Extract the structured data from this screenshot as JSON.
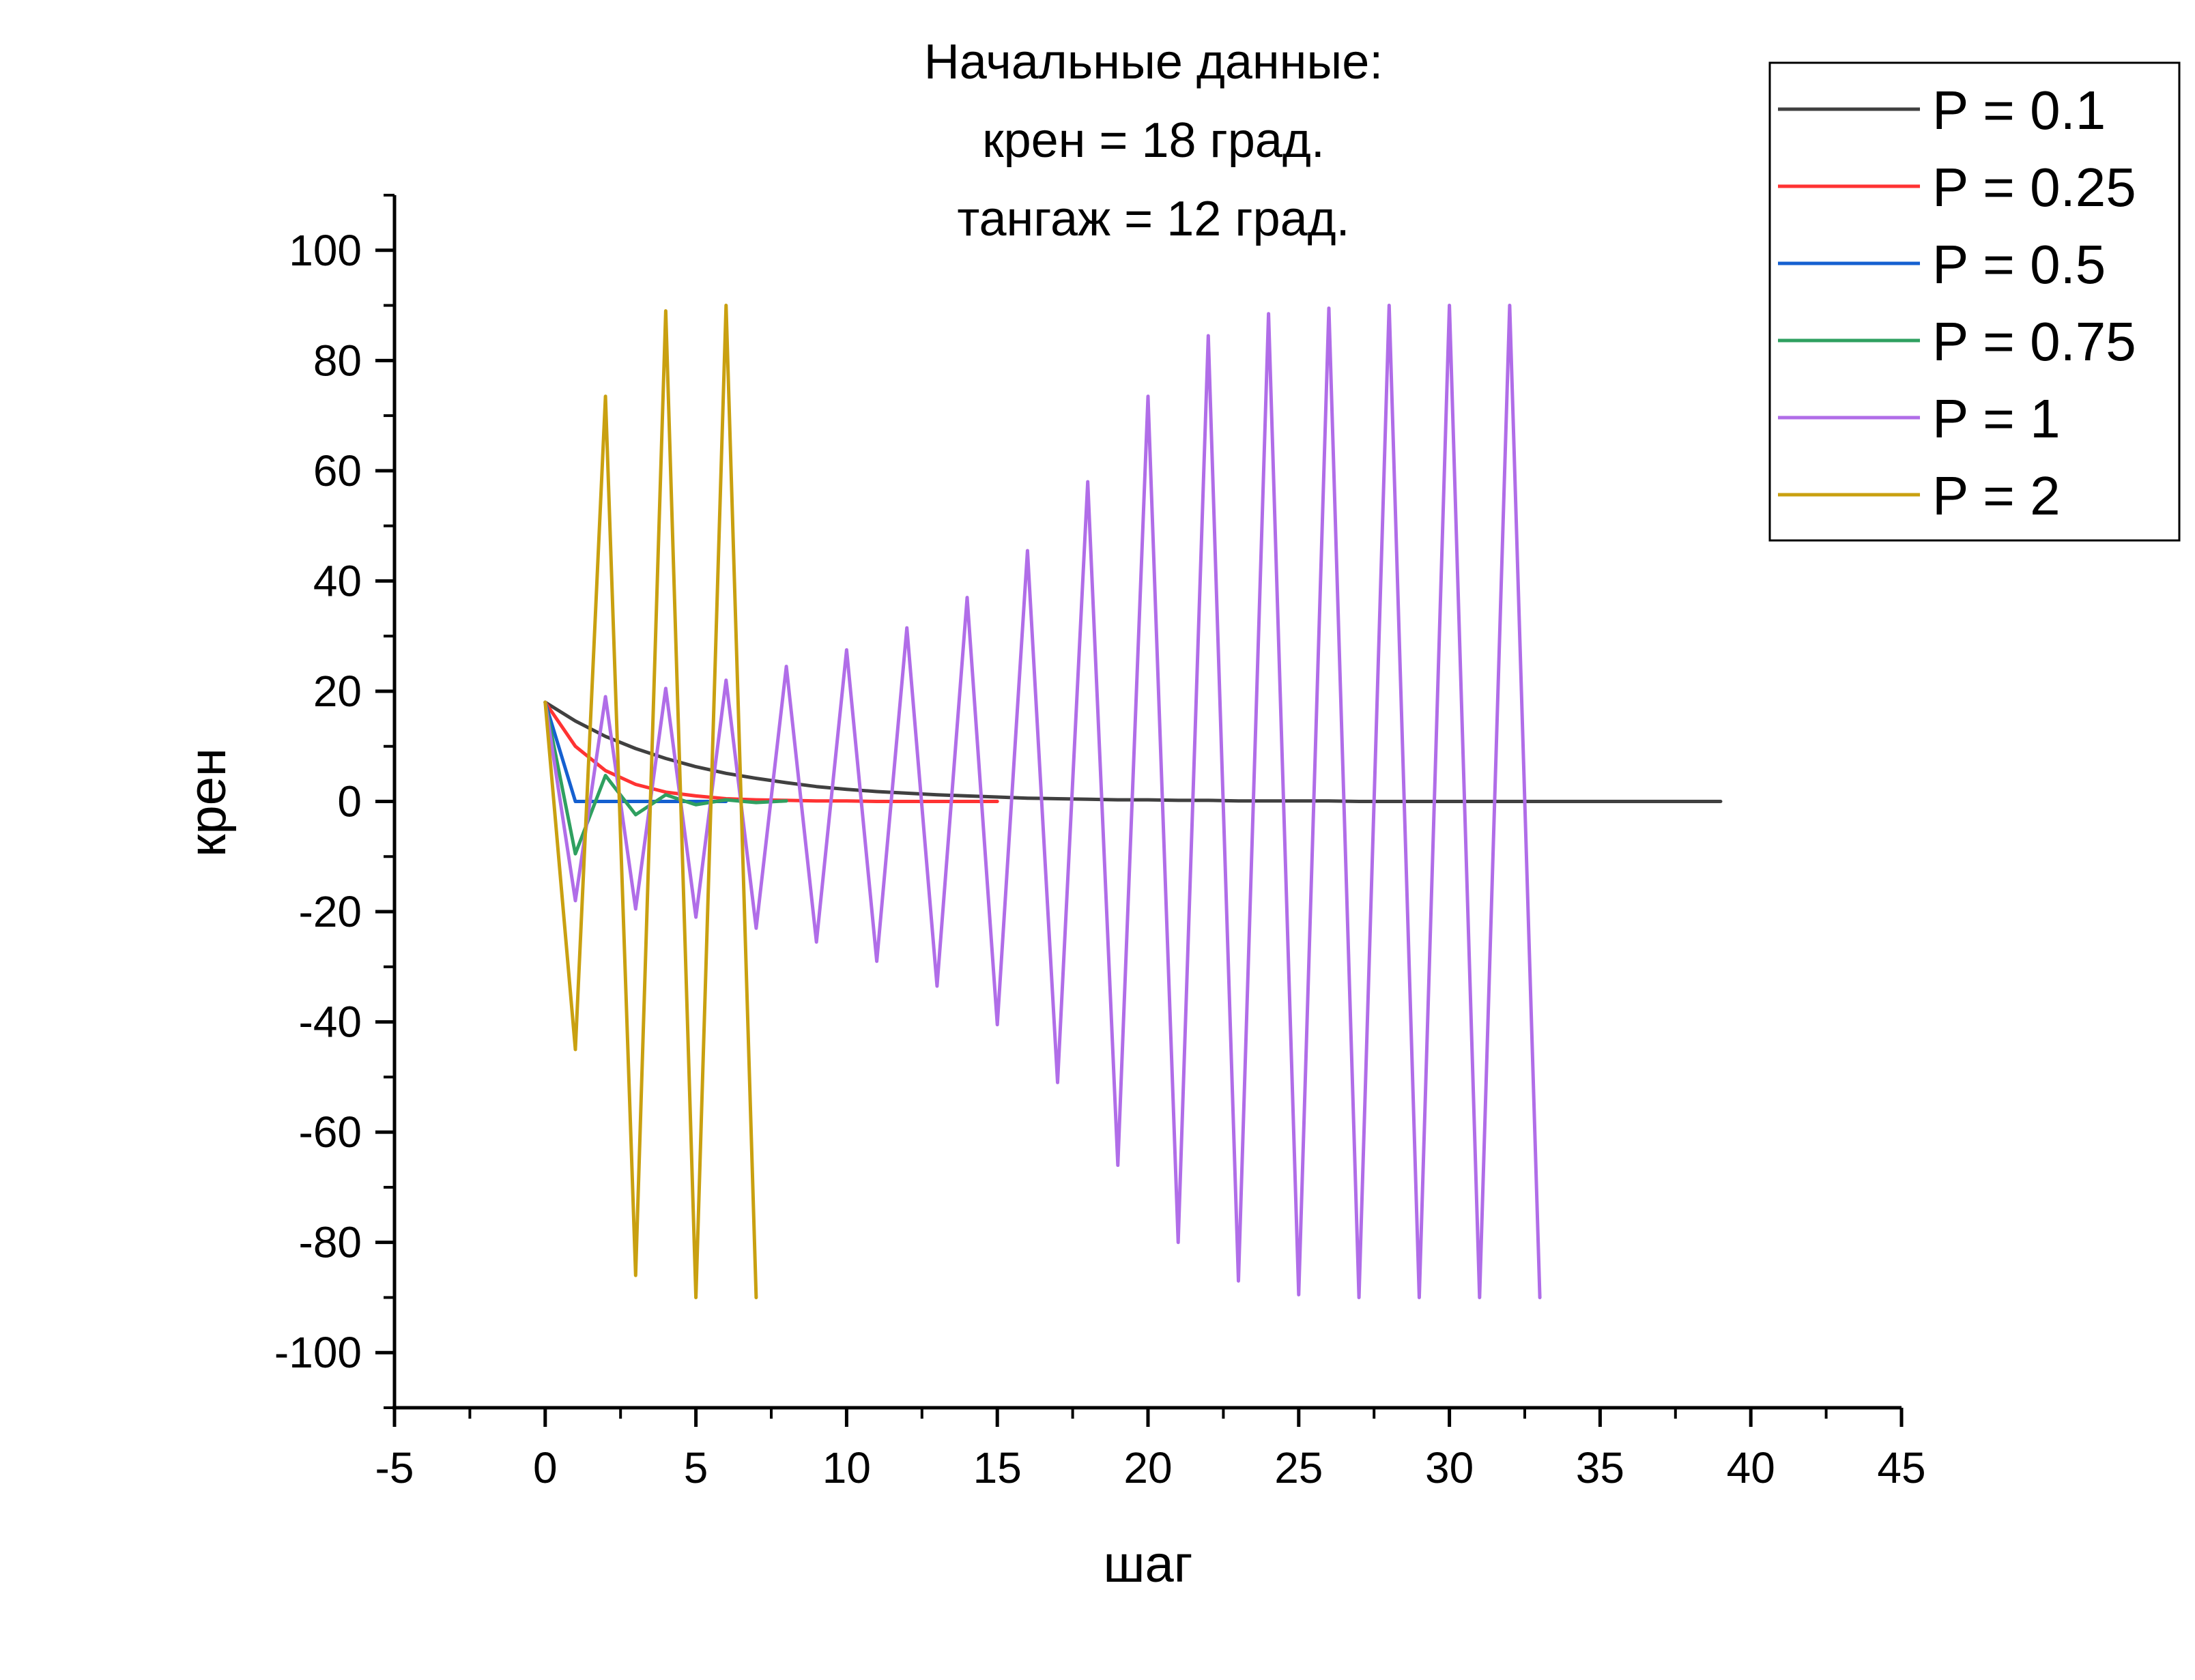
{
  "chart_data": {
    "type": "line",
    "title_lines": [
      "Начальные данные:",
      "крен = 18 град.",
      "тангаж = 12 град."
    ],
    "xlabel": "шаг",
    "ylabel": "крен",
    "xlim": [
      -5,
      45
    ],
    "ylim": [
      -110,
      110
    ],
    "x_ticks": [
      -5,
      0,
      5,
      10,
      15,
      20,
      25,
      30,
      35,
      40,
      45
    ],
    "y_ticks": [
      -100,
      -80,
      -60,
      -40,
      -20,
      0,
      20,
      40,
      60,
      80,
      100
    ],
    "x_tick_labels": [
      "-5",
      "0",
      "5",
      "10",
      "15",
      "20",
      "25",
      "30",
      "35",
      "40",
      "45"
    ],
    "y_tick_labels": [
      "-100",
      "-80",
      "-60",
      "-40",
      "-20",
      "0",
      "20",
      "40",
      "60",
      "80",
      "100"
    ],
    "grid": false,
    "legend_position": "top-right",
    "series": [
      {
        "name": "P = 0.1",
        "color": "#404040",
        "x": [
          0,
          1,
          2,
          3,
          4,
          5,
          6,
          7,
          8,
          9,
          10,
          11,
          12,
          13,
          14,
          15,
          16,
          17,
          18,
          19,
          20,
          21,
          22,
          23,
          24,
          25,
          26,
          27,
          28,
          29,
          30,
          31,
          32,
          33,
          34,
          35,
          36,
          37,
          38,
          39
        ],
        "y": [
          18,
          14.6,
          11.8,
          9.6,
          7.8,
          6.3,
          5.1,
          4.2,
          3.4,
          2.7,
          2.2,
          1.8,
          1.5,
          1.2,
          1,
          0.8,
          0.6,
          0.5,
          0.4,
          0.3,
          0.3,
          0.2,
          0.2,
          0.1,
          0.1,
          0.1,
          0.1,
          0,
          0,
          0,
          0,
          0,
          0,
          0,
          0,
          0,
          0,
          0,
          0,
          0
        ]
      },
      {
        "name": "P = 0.25",
        "color": "#ff3333",
        "x": [
          0,
          1,
          2,
          3,
          4,
          5,
          6,
          7,
          8,
          9,
          10,
          11,
          12,
          13,
          14,
          15
        ],
        "y": [
          18,
          10,
          5.6,
          3.1,
          1.7,
          1,
          0.5,
          0.3,
          0.2,
          0.1,
          0.1,
          0,
          0,
          0,
          0,
          0
        ]
      },
      {
        "name": "P = 0.5",
        "color": "#1560d0",
        "x": [
          0,
          1,
          2,
          3,
          4,
          5,
          6
        ],
        "y": [
          18,
          0,
          0,
          0,
          0,
          0,
          0
        ]
      },
      {
        "name": "P = 0.75",
        "color": "#2fa060",
        "x": [
          0,
          1,
          2,
          3,
          4,
          5,
          6,
          7,
          8
        ],
        "y": [
          18,
          -9.5,
          4.7,
          -2.4,
          1.2,
          -0.6,
          0.3,
          -0.2,
          0.1
        ]
      },
      {
        "name": "P = 1",
        "color": "#b06de8",
        "x": [
          0,
          1,
          2,
          3,
          4,
          5,
          6,
          7,
          8,
          9,
          10,
          11,
          12,
          13,
          14,
          15,
          16,
          17,
          18,
          19,
          20,
          21,
          22,
          23,
          24,
          25,
          26,
          27,
          28,
          29,
          30,
          31,
          32,
          33
        ],
        "y": [
          18,
          -18,
          19,
          -19.5,
          20.5,
          -21,
          22,
          -23,
          24.5,
          -25.5,
          27.5,
          -29,
          31.5,
          -33.5,
          37,
          -40.5,
          45.5,
          -51,
          58,
          -66,
          73.5,
          -80,
          84.5,
          -87,
          88.5,
          -89.5,
          89.5,
          -90,
          90,
          -90,
          90,
          -90,
          90,
          -90
        ]
      },
      {
        "name": "P = 2",
        "color": "#c9a010",
        "x": [
          0,
          1,
          2,
          3,
          4,
          5,
          6,
          7
        ],
        "y": [
          18,
          -45,
          73.5,
          -86,
          89,
          -90,
          90,
          -90
        ]
      }
    ]
  }
}
